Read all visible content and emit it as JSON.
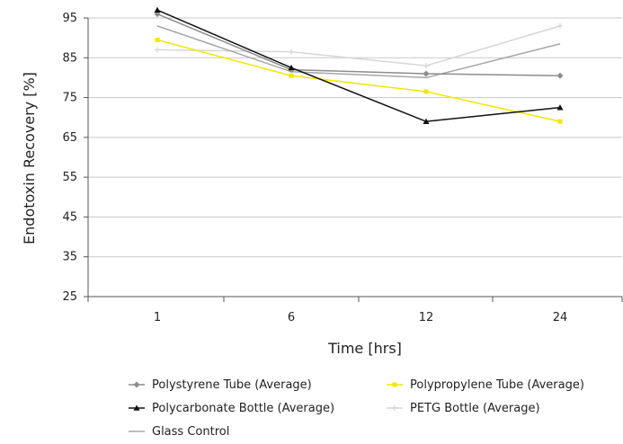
{
  "chart_data": {
    "type": "line",
    "title": "",
    "xlabel": "Time [hrs]",
    "ylabel": "Endotoxin Recovery [%]",
    "categories": [
      "1",
      "6",
      "12",
      "24"
    ],
    "yticks": [
      "25",
      "35",
      "45",
      "55",
      "65",
      "75",
      "85",
      "95"
    ],
    "ylim": [
      25,
      95
    ],
    "grid": "horizontal",
    "legend_position": "bottom",
    "series": [
      {
        "name": "Polystyrene Tube (Average)",
        "values": [
          96,
          82,
          81,
          80.5
        ],
        "color": "#8c8c8c",
        "marker": "diamond"
      },
      {
        "name": "Polypropylene Tube (Average)",
        "values": [
          89.5,
          80.5,
          76.5,
          69
        ],
        "color": "#f2e600",
        "marker": "square"
      },
      {
        "name": "Polycarbonate Bottle (Average)",
        "values": [
          97,
          82.5,
          69,
          72.5
        ],
        "color": "#111111",
        "marker": "triangle"
      },
      {
        "name": "PETG Bottle (Average)",
        "values": [
          87,
          86.5,
          83,
          93
        ],
        "color": "#d6d6d6",
        "marker": "plus"
      },
      {
        "name": "Glass Control",
        "values": [
          93,
          81.5,
          80,
          88.5
        ],
        "color": "#a6a6a6",
        "marker": "none"
      }
    ]
  }
}
